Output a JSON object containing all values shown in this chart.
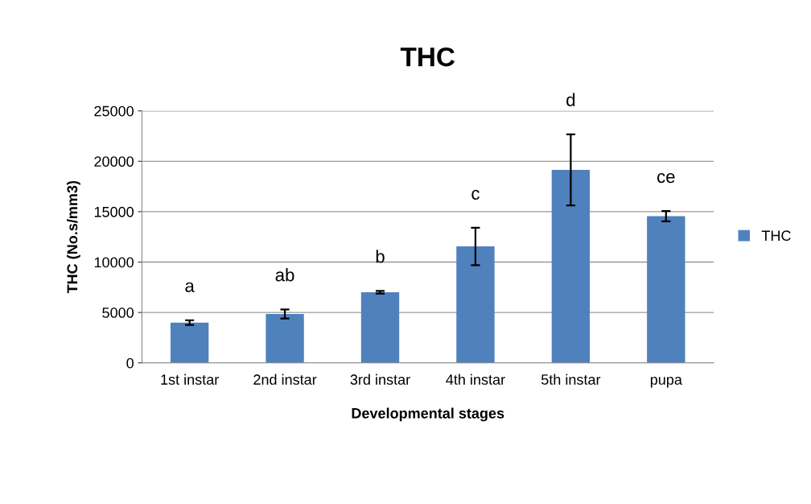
{
  "chart_data": {
    "type": "bar",
    "title": "THC",
    "xlabel": "Developmental stages",
    "ylabel": "THC (No.s/mm3)",
    "categories": [
      "1st instar",
      "2nd instar",
      "3rd instar",
      "4th instar",
      "5th instar",
      "pupa"
    ],
    "series": [
      {
        "name": "THC",
        "color": "#4f81bd",
        "values": [
          4000,
          4850,
          7000,
          11550,
          19150,
          14550
        ],
        "errors": [
          230,
          450,
          130,
          1850,
          3520,
          510
        ]
      }
    ],
    "ylim": [
      0,
      25000
    ],
    "yticks": [
      0,
      5000,
      10000,
      15000,
      20000,
      25000
    ],
    "grid": "y",
    "legend": "right",
    "annotations": [
      "a",
      "ab",
      "b",
      "c",
      "d",
      "ce"
    ]
  }
}
